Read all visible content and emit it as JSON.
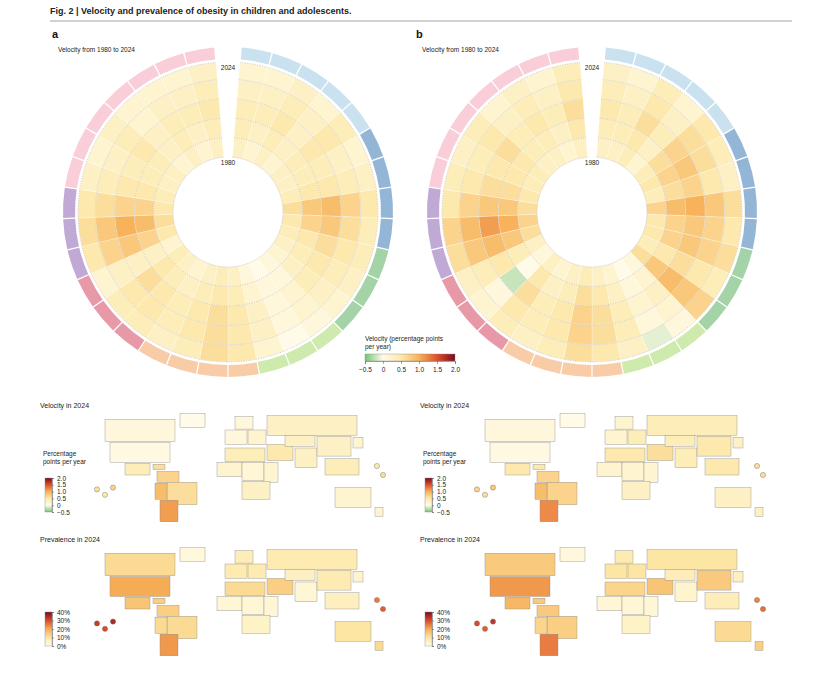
{
  "title": "Fig. 2 | Velocity and prevalence of obesity in children and adolescents.",
  "chart_data": [
    {
      "type": "radial_heatmap",
      "panel": "a",
      "subtitle": "Velocity from 1980 to 2024",
      "rlim": [
        1980,
        2024
      ],
      "rticks": [
        1980,
        2024
      ],
      "ring_edges": [
        1980,
        1989,
        1998,
        2007,
        2016,
        2024
      ],
      "colors": [
        "#9ecae1",
        "#9ecae1",
        "#9ecae1",
        "#9ecae1",
        "#9ecae1",
        "#3d7ab5",
        "#3d7ab5",
        "#3d7ab5",
        "#3d7ab5",
        "#5aae61",
        "#5aae61",
        "#5aae61",
        "#a6d96a",
        "#a6d96a",
        "#a6d96a",
        "#f4a261",
        "#f4a261",
        "#f4a261",
        "#f4a261",
        "#d6455e",
        "#d6455e",
        "#d6455e",
        "#8e63b5",
        "#8e63b5",
        "#8e63b5",
        "#f4a6b8",
        "#f4a6b8",
        "#f4a6b8",
        "#f4a6b8",
        "#f4a6b8",
        "#f4a6b8",
        "#f4a6b8"
      ],
      "values": [
        [
          0.3,
          0.4,
          0.4,
          0.3,
          0.2
        ],
        [
          0.2,
          0.3,
          0.4,
          0.3,
          0.2
        ],
        [
          0.3,
          0.4,
          0.5,
          0.4,
          0.3
        ],
        [
          0.2,
          0.3,
          0.3,
          0.3,
          0.2
        ],
        [
          0.3,
          0.4,
          0.5,
          0.5,
          0.4
        ],
        [
          0.3,
          0.4,
          0.4,
          0.3,
          0.2
        ],
        [
          0.4,
          0.5,
          0.5,
          0.4,
          0.3
        ],
        [
          0.6,
          0.8,
          0.9,
          0.7,
          0.5
        ],
        [
          0.5,
          0.7,
          0.8,
          0.6,
          0.4
        ],
        [
          0.4,
          0.5,
          0.6,
          0.5,
          0.4
        ],
        [
          0.3,
          0.4,
          0.5,
          0.4,
          0.3
        ],
        [
          0.2,
          0.3,
          0.4,
          0.3,
          0.2
        ],
        [
          0.1,
          0.1,
          0.2,
          0.2,
          0.1
        ],
        [
          0.0,
          0.1,
          0.1,
          0.1,
          0.0
        ],
        [
          0.1,
          0.2,
          0.3,
          0.3,
          0.2
        ],
        [
          0.3,
          0.4,
          0.5,
          0.5,
          0.5
        ],
        [
          0.4,
          0.5,
          0.6,
          0.6,
          0.6
        ],
        [
          0.3,
          0.4,
          0.5,
          0.5,
          0.4
        ],
        [
          0.2,
          0.3,
          0.4,
          0.4,
          0.3
        ],
        [
          0.3,
          0.4,
          0.5,
          0.5,
          0.4
        ],
        [
          0.4,
          0.5,
          0.6,
          0.5,
          0.4
        ],
        [
          0.2,
          0.3,
          0.3,
          0.3,
          0.2
        ],
        [
          0.5,
          0.7,
          0.8,
          0.7,
          0.5
        ],
        [
          0.6,
          0.9,
          1.0,
          0.8,
          0.6
        ],
        [
          0.5,
          0.7,
          0.7,
          0.6,
          0.5
        ],
        [
          0.4,
          0.5,
          0.5,
          0.4,
          0.3
        ],
        [
          0.3,
          0.4,
          0.4,
          0.3,
          0.2
        ],
        [
          0.3,
          0.4,
          0.5,
          0.4,
          0.3
        ],
        [
          0.2,
          0.3,
          0.3,
          0.2,
          0.2
        ],
        [
          0.3,
          0.4,
          0.4,
          0.3,
          0.2
        ],
        [
          0.2,
          0.3,
          0.4,
          0.3,
          0.2
        ],
        [
          0.3,
          0.4,
          0.5,
          0.4,
          0.3
        ]
      ],
      "colorbar": {
        "title": "Velocity (percentage points per year)",
        "range": [
          -0.5,
          2.0
        ],
        "ticks": [
          {
            "value": -0.5,
            "label": "−0.5"
          },
          0,
          0.5,
          {
            "value": 1,
            "label": "1.0"
          },
          1.5,
          {
            "value": 2,
            "label": "2.0"
          }
        ]
      }
    },
    {
      "type": "radial_heatmap",
      "panel": "b",
      "subtitle": "Velocity from 1980 to 2024",
      "rlim": [
        1980,
        2024
      ],
      "rticks": [
        1980,
        2024
      ],
      "ring_edges": [
        1980,
        1989,
        1998,
        2007,
        2016,
        2024
      ],
      "colors": [
        "#9ecae1",
        "#9ecae1",
        "#9ecae1",
        "#9ecae1",
        "#9ecae1",
        "#3d7ab5",
        "#3d7ab5",
        "#3d7ab5",
        "#3d7ab5",
        "#5aae61",
        "#5aae61",
        "#5aae61",
        "#a6d96a",
        "#a6d96a",
        "#a6d96a",
        "#f4a261",
        "#f4a261",
        "#f4a261",
        "#f4a261",
        "#d6455e",
        "#d6455e",
        "#d6455e",
        "#8e63b5",
        "#8e63b5",
        "#8e63b5",
        "#f4a6b8",
        "#f4a6b8",
        "#f4a6b8",
        "#f4a6b8",
        "#f4a6b8",
        "#f4a6b8",
        "#f4a6b8"
      ],
      "values": [
        [
          0.3,
          0.4,
          0.5,
          0.4,
          0.3
        ],
        [
          0.3,
          0.4,
          0.4,
          0.3,
          0.2
        ],
        [
          0.4,
          0.5,
          0.6,
          0.5,
          0.4
        ],
        [
          0.2,
          0.3,
          0.4,
          0.3,
          0.2
        ],
        [
          0.4,
          0.6,
          0.7,
          0.6,
          0.5
        ],
        [
          0.5,
          0.7,
          0.8,
          0.6,
          0.4
        ],
        [
          0.4,
          0.6,
          0.7,
          0.5,
          0.3
        ],
        [
          0.7,
          0.9,
          1.0,
          0.8,
          0.6
        ],
        [
          0.5,
          0.7,
          0.8,
          0.7,
          0.5
        ],
        [
          0.5,
          0.7,
          0.8,
          0.7,
          0.6
        ],
        [
          0.4,
          0.5,
          0.6,
          0.5,
          0.4
        ],
        [
          0.6,
          0.8,
          0.9,
          0.8,
          0.7
        ],
        [
          0.1,
          0.2,
          0.3,
          0.2,
          0.1
        ],
        [
          0.0,
          0.1,
          0.2,
          0.1,
          -0.1
        ],
        [
          0.2,
          0.3,
          0.4,
          0.4,
          0.3
        ],
        [
          0.3,
          0.5,
          0.6,
          0.6,
          0.5
        ],
        [
          0.4,
          0.6,
          0.7,
          0.7,
          0.6
        ],
        [
          0.3,
          0.4,
          0.5,
          0.5,
          0.4
        ],
        [
          0.2,
          0.3,
          0.4,
          0.4,
          0.3
        ],
        [
          0.3,
          0.5,
          0.6,
          0.5,
          0.4
        ],
        [
          0.1,
          0.0,
          -0.2,
          0.1,
          0.2
        ],
        [
          0.3,
          0.4,
          0.5,
          0.4,
          0.3
        ],
        [
          0.6,
          0.8,
          0.9,
          0.8,
          0.6
        ],
        [
          0.7,
          1.0,
          1.1,
          0.9,
          0.7
        ],
        [
          0.6,
          0.8,
          0.8,
          0.7,
          0.5
        ],
        [
          0.5,
          0.6,
          0.6,
          0.5,
          0.4
        ],
        [
          0.4,
          0.5,
          0.5,
          0.4,
          0.3
        ],
        [
          0.4,
          0.5,
          0.6,
          0.5,
          0.4
        ],
        [
          0.3,
          0.4,
          0.4,
          0.3,
          0.2
        ],
        [
          0.3,
          0.4,
          0.5,
          0.4,
          0.3
        ],
        [
          0.2,
          0.3,
          0.4,
          0.3,
          0.2
        ],
        [
          0.3,
          0.5,
          0.6,
          0.5,
          0.4
        ]
      ]
    },
    {
      "type": "choropleth",
      "title": "Velocity in 2024",
      "values": [
        0.1,
        0,
        0.05,
        0.4,
        0.6,
        0.7,
        0.6,
        0.9,
        1.1,
        0.1,
        0.1,
        0.2,
        0.3,
        0.4,
        0.2,
        0.15,
        0.2,
        0.3,
        0.5,
        0.3,
        0.3,
        0.3,
        0.2,
        0.4,
        0.2,
        0.2,
        0.6,
        0.5,
        0.7,
        0.6,
        0.5
      ],
      "colorbar": {
        "title": "Percentage points per year",
        "range": [
          -0.5,
          2.0
        ],
        "ticks": [
          {
            "value": 2,
            "label": "2.0"
          },
          1.5,
          {
            "value": 1,
            "label": "1.0"
          },
          0.5,
          0,
          {
            "value": -0.5,
            "label": "−0.5"
          }
        ]
      }
    },
    {
      "type": "choropleth",
      "title": "Prevalence in 2024",
      "values": [
        12,
        2,
        20,
        16,
        14,
        14,
        12,
        12,
        22,
        8,
        7,
        8,
        8,
        12,
        3,
        3,
        3,
        5,
        14,
        6,
        3,
        8,
        4,
        6,
        10,
        12,
        32,
        30,
        35,
        28,
        25
      ],
      "colorbar": {
        "range": [
          0,
          40
        ],
        "ticks": [
          {
            "value": 40,
            "label": "40%"
          },
          {
            "value": 30,
            "label": "30%"
          },
          {
            "value": 20,
            "label": "20%"
          },
          {
            "value": 10,
            "label": "10%"
          },
          {
            "value": 0,
            "label": "0%"
          }
        ]
      }
    },
    {
      "type": "choropleth",
      "title": "Velocity in 2024",
      "values": [
        0.1,
        0,
        0.05,
        0.5,
        0.5,
        0.7,
        0.7,
        0.9,
        1.2,
        0.2,
        0.2,
        0.4,
        0.4,
        0.5,
        0.2,
        0.2,
        0.2,
        0.3,
        0.6,
        0.4,
        0.4,
        0.5,
        0.3,
        0.5,
        0.3,
        0.3,
        0.7,
        0.6,
        0.8,
        0.6,
        0.6
      ],
      "colorbar": {
        "title": "Percentage points per year",
        "range": [
          -0.5,
          2.0
        ],
        "ticks": [
          {
            "value": 2,
            "label": "2.0"
          },
          1.5,
          {
            "value": 1,
            "label": "1.0"
          },
          0.5,
          0,
          {
            "value": -0.5,
            "label": "−0.5"
          }
        ]
      }
    },
    {
      "type": "choropleth",
      "title": "Prevalence in 2024",
      "values": [
        15,
        2,
        22,
        18,
        15,
        15,
        14,
        13,
        25,
        10,
        8,
        10,
        10,
        13,
        3,
        3,
        3,
        5,
        16,
        7,
        4,
        15,
        6,
        7,
        12,
        14,
        30,
        28,
        33,
        26,
        24
      ],
      "colorbar": {
        "range": [
          0,
          40
        ],
        "ticks": [
          {
            "value": 40,
            "label": "40%"
          },
          {
            "value": 30,
            "label": "30%"
          },
          {
            "value": 20,
            "label": "20%"
          },
          {
            "value": 10,
            "label": "10%"
          },
          {
            "value": 0,
            "label": "0%"
          }
        ]
      }
    }
  ]
}
